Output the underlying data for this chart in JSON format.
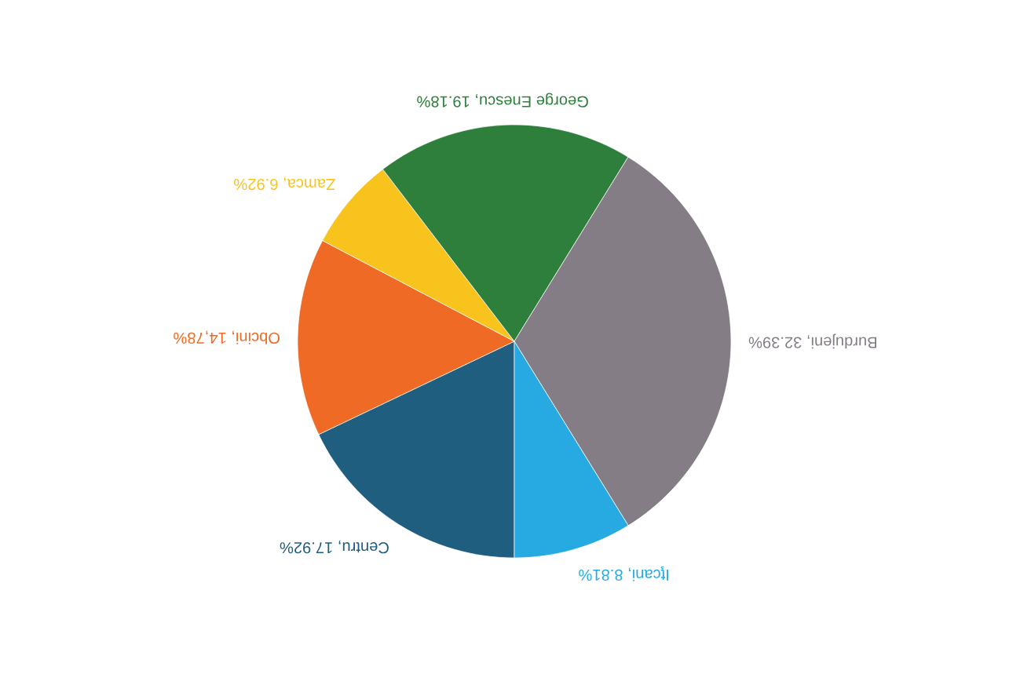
{
  "chart_data": {
    "type": "pie",
    "categories": [
      "Centru",
      "Obcini",
      "Zamca",
      "George Enescu",
      "Burdujeni",
      "Iţcani"
    ],
    "values": [
      17.92,
      14.78,
      6.92,
      19.18,
      32.39,
      8.81
    ],
    "value_labels": [
      "17.92%",
      "14,78%",
      "6.92%",
      "19.18%",
      "32.39%",
      "8.81%"
    ],
    "colors": [
      "#1f5e7e",
      "#ef6a25",
      "#f8c31c",
      "#2e7e3c",
      "#857d86",
      "#27aae1"
    ],
    "legend": false
  }
}
